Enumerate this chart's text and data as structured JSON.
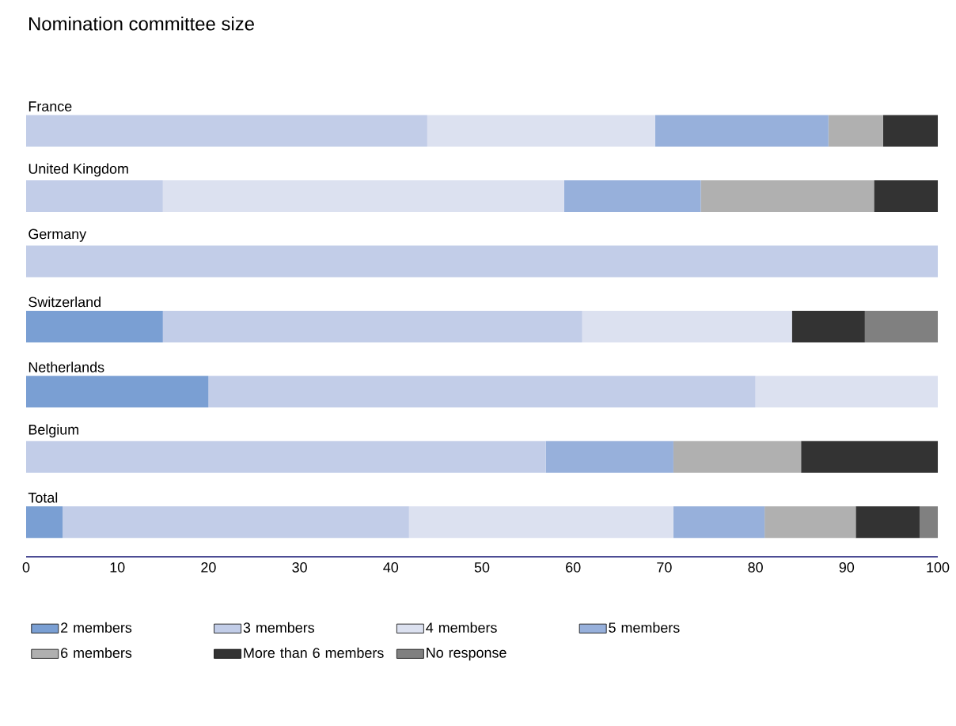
{
  "chart_data": {
    "type": "bar",
    "orientation": "horizontal",
    "stacked": true,
    "title": "Nomination committee size",
    "categories": [
      "France",
      "United Kingdom",
      "Germany",
      "Switzerland",
      "Netherlands",
      "Belgium",
      "Total"
    ],
    "series": [
      {
        "name": "2 members",
        "color": "#7a9fd3",
        "values": [
          null,
          null,
          null,
          15,
          20,
          null,
          4
        ]
      },
      {
        "name": "3 members",
        "color": "#c2cde8",
        "values": [
          44,
          15,
          100,
          46,
          60,
          57,
          38
        ]
      },
      {
        "name": "4 members",
        "color": "#dce1f0",
        "values": [
          25,
          44,
          null,
          23,
          20,
          null,
          29
        ]
      },
      {
        "name": "5 members",
        "color": "#97b0db",
        "values": [
          19,
          15,
          null,
          null,
          null,
          14,
          10
        ]
      },
      {
        "name": "6 members",
        "color": "#b0b0b0",
        "values": [
          6,
          19,
          null,
          null,
          null,
          14,
          10
        ]
      },
      {
        "name": "More than 6 members",
        "color": "#333333",
        "values": [
          6,
          7,
          null,
          8,
          null,
          15,
          7
        ]
      },
      {
        "name": "No response",
        "color": "#808080",
        "values": [
          null,
          null,
          null,
          8,
          null,
          null,
          2
        ]
      }
    ],
    "xlim": [
      0,
      100
    ],
    "xticks": [
      0,
      10,
      20,
      30,
      40,
      50,
      60,
      70,
      80,
      90,
      100
    ],
    "grid": false,
    "legend": "bottom"
  }
}
